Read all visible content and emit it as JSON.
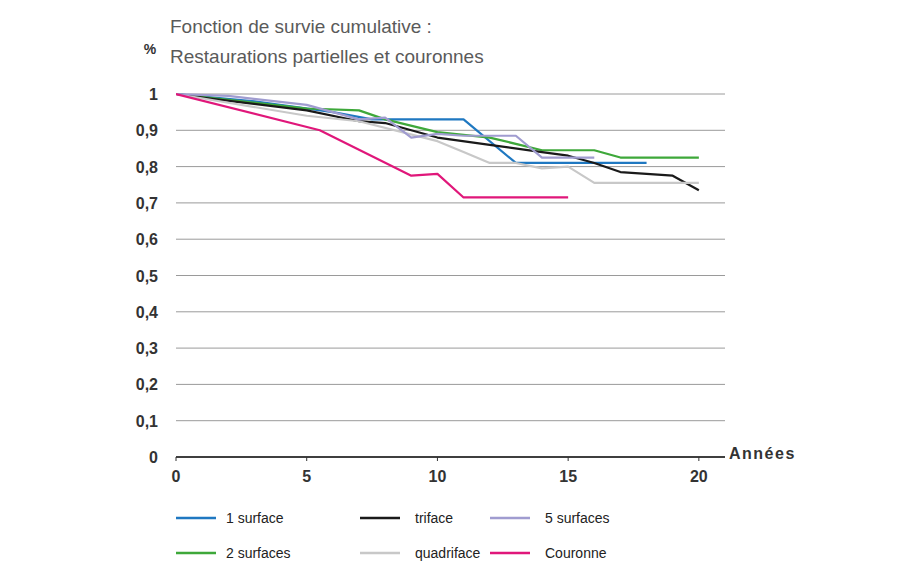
{
  "chart_data": {
    "type": "line",
    "title": "Fonction de survie cumulative :",
    "subtitle": "Restaurations partielles et couronnes",
    "y_label": "%",
    "x_label": "Années",
    "xlim": [
      0,
      21
    ],
    "xticks": [
      0,
      5,
      10,
      15,
      20
    ],
    "ylim": [
      0,
      1
    ],
    "yticks": [
      0,
      {
        "value": 0.1,
        "label": "0,1"
      },
      {
        "value": 0.2,
        "label": "0,2"
      },
      {
        "value": 0.3,
        "label": "0,3"
      },
      {
        "value": 0.4,
        "label": "0,4"
      },
      {
        "value": 0.5,
        "label": "0,5"
      },
      {
        "value": 0.6,
        "label": "0,6"
      },
      {
        "value": 0.7,
        "label": "0,7"
      },
      {
        "value": 0.8,
        "label": "0,8"
      },
      {
        "value": 0.9,
        "label": "0,9"
      },
      1
    ],
    "grid": true,
    "legend": "bottom",
    "series": [
      {
        "name": "1 surface",
        "color": "#1f78c1",
        "x": [
          0,
          3,
          6,
          7.5,
          11,
          13,
          18
        ],
        "values": [
          1,
          0.98,
          0.95,
          0.93,
          0.93,
          0.81,
          0.81
        ]
      },
      {
        "name": "2 surfaces",
        "color": "#3ea83a",
        "x": [
          0,
          5,
          7,
          8,
          10,
          12,
          14,
          16,
          17,
          20
        ],
        "values": [
          1,
          0.96,
          0.955,
          0.93,
          0.895,
          0.88,
          0.845,
          0.845,
          0.825,
          0.825
        ]
      },
      {
        "name": "triface",
        "color": "#1a1a1a",
        "x": [
          0,
          1,
          5,
          7,
          8,
          9,
          10,
          12,
          14,
          15,
          16,
          17,
          19,
          20
        ],
        "values": [
          1,
          0.99,
          0.955,
          0.925,
          0.92,
          0.9,
          0.88,
          0.86,
          0.84,
          0.83,
          0.81,
          0.785,
          0.775,
          0.735
        ]
      },
      {
        "name": "quadriface",
        "color": "#c8c8c8",
        "x": [
          0,
          5,
          7,
          10,
          11,
          12,
          13,
          14,
          15,
          16,
          20
        ],
        "values": [
          1,
          0.94,
          0.925,
          0.87,
          0.84,
          0.81,
          0.81,
          0.795,
          0.8,
          0.755,
          0.755
        ]
      },
      {
        "name": "5 surfaces",
        "color": "#a09cd0",
        "x": [
          0,
          2,
          5,
          7,
          8,
          9,
          10,
          11,
          13,
          14,
          16
        ],
        "values": [
          1,
          0.995,
          0.97,
          0.93,
          0.935,
          0.88,
          0.89,
          0.885,
          0.885,
          0.825,
          0.825
        ]
      },
      {
        "name": "Couronne",
        "color": "#e0177a",
        "x": [
          0,
          5.5,
          9,
          10,
          11,
          15
        ],
        "values": [
          1,
          0.9,
          0.775,
          0.78,
          0.715,
          0.715
        ]
      }
    ]
  }
}
